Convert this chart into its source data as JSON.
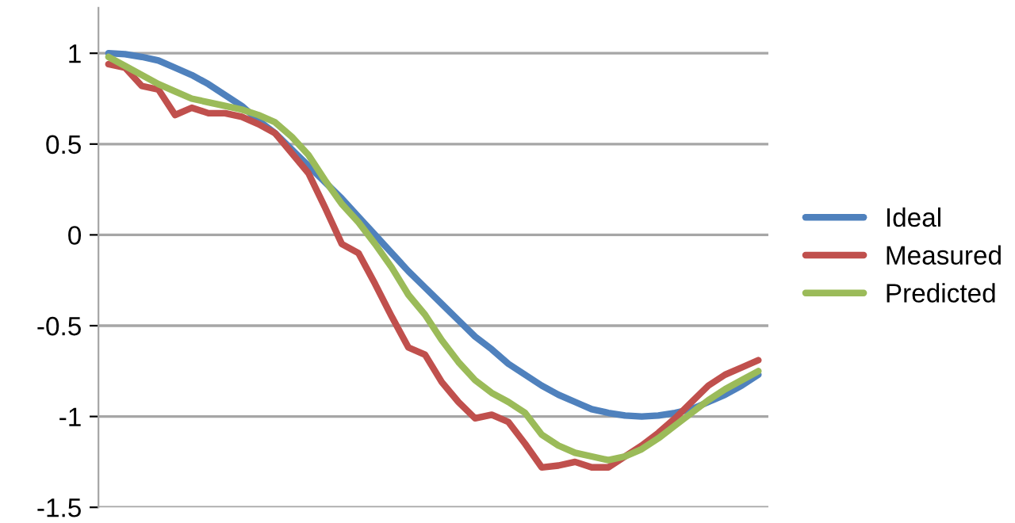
{
  "chart_data": {
    "type": "line",
    "categories": [
      null,
      null,
      null,
      null,
      null,
      null,
      null,
      null,
      null,
      null,
      null,
      null,
      null,
      null,
      null,
      null,
      null,
      null,
      null,
      null,
      null,
      null,
      null,
      null,
      null,
      null,
      null,
      null,
      null,
      null,
      null,
      null,
      null,
      null,
      null,
      null,
      null,
      null,
      null,
      null
    ],
    "series": [
      {
        "name": "Ideal",
        "color": "#4f81bd",
        "values": [
          1.0,
          0.995,
          0.98,
          0.96,
          0.92,
          0.88,
          0.83,
          0.77,
          0.71,
          0.63,
          0.56,
          0.47,
          0.38,
          0.29,
          0.2,
          0.1,
          0.0,
          -0.1,
          -0.2,
          -0.29,
          -0.38,
          -0.47,
          -0.56,
          -0.63,
          -0.71,
          -0.77,
          -0.83,
          -0.88,
          -0.92,
          -0.96,
          -0.98,
          -0.995,
          -1.0,
          -0.995,
          -0.98,
          -0.96,
          -0.92,
          -0.88,
          -0.83,
          -0.77
        ]
      },
      {
        "name": "Measured",
        "color": "#c0504d",
        "values": [
          0.94,
          0.92,
          0.82,
          0.8,
          0.66,
          0.7,
          0.67,
          0.67,
          0.65,
          0.61,
          0.56,
          0.45,
          0.34,
          0.15,
          -0.05,
          -0.1,
          -0.27,
          -0.45,
          -0.62,
          -0.66,
          -0.81,
          -0.92,
          -1.01,
          -0.99,
          -1.03,
          -1.15,
          -1.28,
          -1.27,
          -1.25,
          -1.28,
          -1.28,
          -1.22,
          -1.16,
          -1.09,
          -1.01,
          -0.92,
          -0.83,
          -0.77,
          -0.73,
          -0.69
        ]
      },
      {
        "name": "Predicted",
        "color": "#9bbb59",
        "values": [
          0.98,
          0.93,
          0.88,
          0.83,
          0.79,
          0.75,
          0.73,
          0.71,
          0.69,
          0.66,
          0.62,
          0.54,
          0.44,
          0.3,
          0.17,
          0.07,
          -0.05,
          -0.18,
          -0.33,
          -0.44,
          -0.58,
          -0.7,
          -0.8,
          -0.87,
          -0.92,
          -0.98,
          -1.1,
          -1.16,
          -1.2,
          -1.22,
          -1.24,
          -1.22,
          -1.18,
          -1.12,
          -1.05,
          -0.98,
          -0.91,
          -0.85,
          -0.8,
          -0.75
        ]
      }
    ],
    "ylim": [
      -1.5,
      1.25
    ],
    "yticks": [
      -1.5,
      -1,
      -0.5,
      0,
      0.5,
      1
    ],
    "grid": "y",
    "legend": "right",
    "tick_labels": "y",
    "marker": "none",
    "line_style": "solid"
  }
}
